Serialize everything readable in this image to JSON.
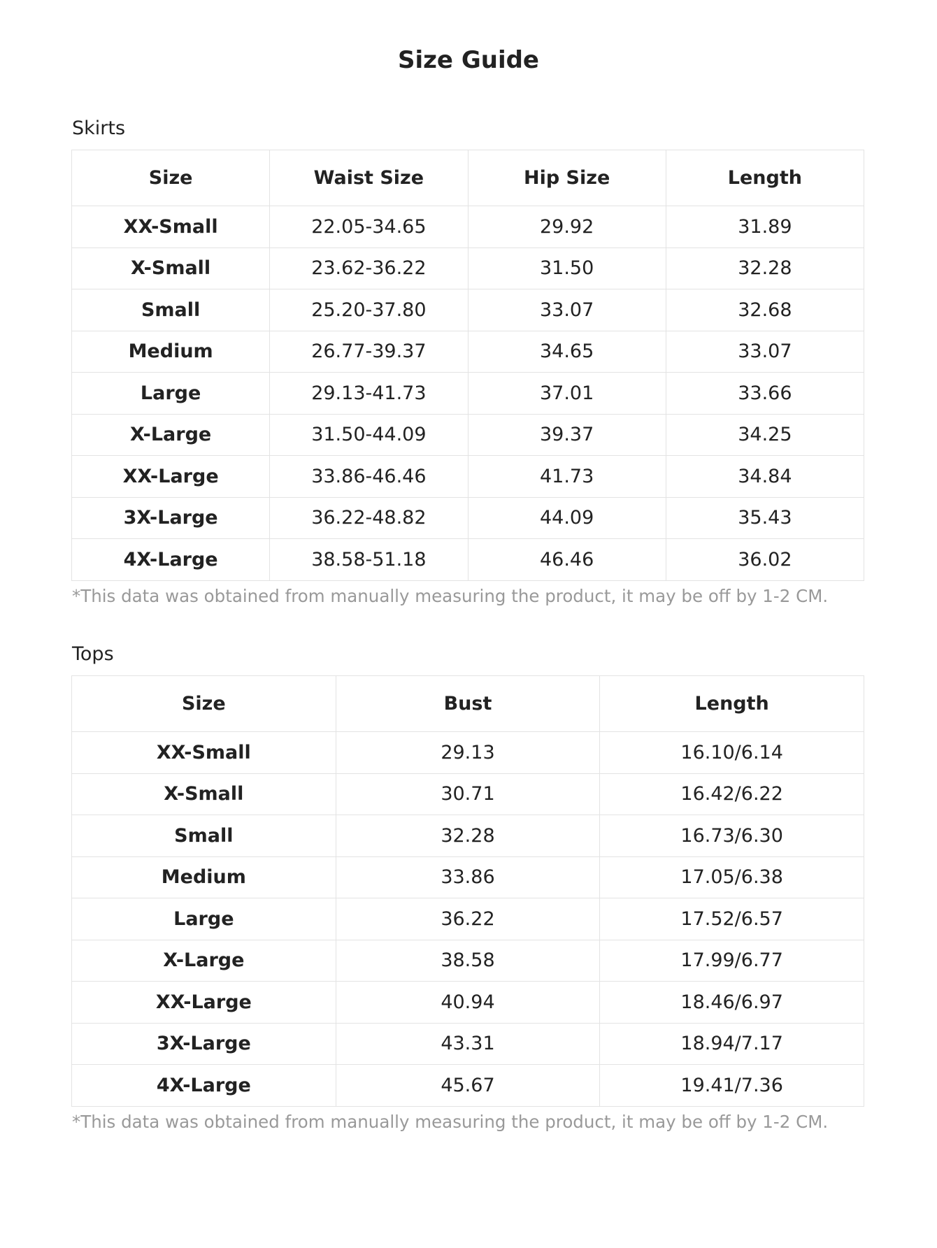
{
  "title": "Size Guide",
  "skirts": {
    "label": "Skirts",
    "headers": [
      "Size",
      "Waist Size",
      "Hip Size",
      "Length"
    ],
    "rows": [
      [
        "XX-Small",
        "22.05-34.65",
        "29.92",
        "31.89"
      ],
      [
        "X-Small",
        "23.62-36.22",
        "31.50",
        "32.28"
      ],
      [
        "Small",
        "25.20-37.80",
        "33.07",
        "32.68"
      ],
      [
        "Medium",
        "26.77-39.37",
        "34.65",
        "33.07"
      ],
      [
        "Large",
        "29.13-41.73",
        "37.01",
        "33.66"
      ],
      [
        "X-Large",
        "31.50-44.09",
        "39.37",
        "34.25"
      ],
      [
        "XX-Large",
        "33.86-46.46",
        "41.73",
        "34.84"
      ],
      [
        "3X-Large",
        "36.22-48.82",
        "44.09",
        "35.43"
      ],
      [
        "4X-Large",
        "38.58-51.18",
        "46.46",
        "36.02"
      ]
    ],
    "note": "*This data was obtained from manually measuring the product, it may be off by 1-2 CM."
  },
  "tops": {
    "label": "Tops",
    "headers": [
      "Size",
      "Bust",
      "Length"
    ],
    "rows": [
      [
        "XX-Small",
        "29.13",
        "16.10/6.14"
      ],
      [
        "X-Small",
        "30.71",
        "16.42/6.22"
      ],
      [
        "Small",
        "32.28",
        "16.73/6.30"
      ],
      [
        "Medium",
        "33.86",
        "17.05/6.38"
      ],
      [
        "Large",
        "36.22",
        "17.52/6.57"
      ],
      [
        "X-Large",
        "38.58",
        "17.99/6.77"
      ],
      [
        "XX-Large",
        "40.94",
        "18.46/6.97"
      ],
      [
        "3X-Large",
        "43.31",
        "18.94/7.17"
      ],
      [
        "4X-Large",
        "45.67",
        "19.41/7.36"
      ]
    ],
    "note": "*This data was obtained from manually measuring the product, it may be off by 1-2 CM."
  }
}
